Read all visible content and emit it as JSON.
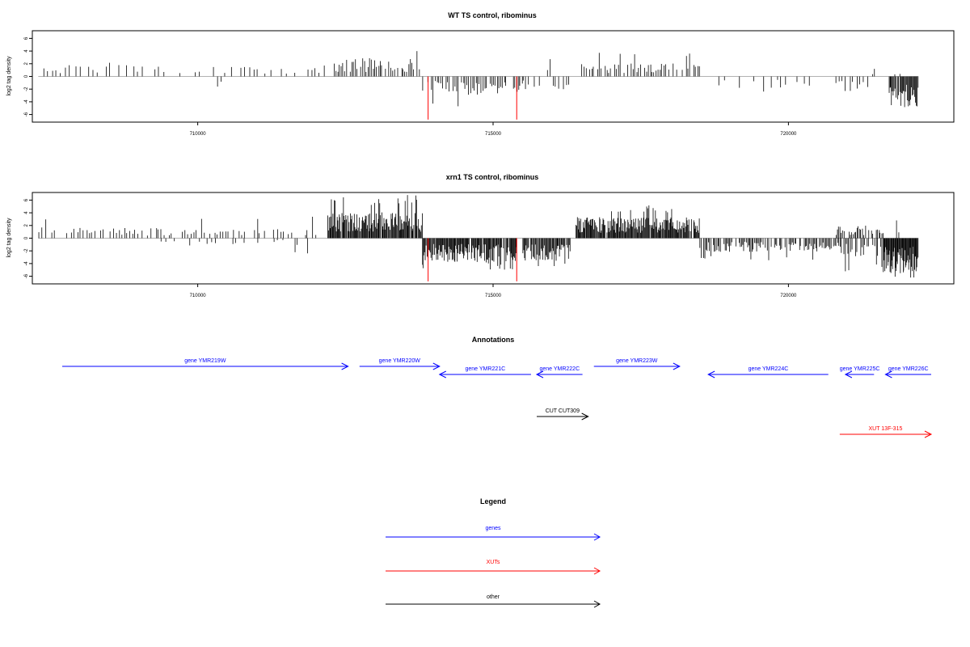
{
  "colors": {
    "genes": "#0000ff",
    "xuts": "#ff0000",
    "other": "#000000",
    "highlight": "#ff0000"
  },
  "chart_data": [
    {
      "type": "bar",
      "title": "WT TS control, ribominus",
      "ylabel": "log2 tag density",
      "xlim": [
        707200,
        722800
      ],
      "ylim": [
        -7.2,
        7.2
      ],
      "xticks": [
        710000,
        715000,
        720000
      ],
      "xtick_labels": [
        "710000",
        "715000",
        "720000"
      ],
      "yticks": [
        6,
        4,
        2,
        0,
        -2,
        -4,
        -6
      ],
      "ytick_labels": [
        "6",
        "4",
        "2",
        "0",
        "-2",
        "-4",
        "-6"
      ],
      "baseline_range": [
        707300,
        722200
      ],
      "highlight_lines": [
        {
          "x": 713900,
          "y": -6.8
        },
        {
          "x": 715400,
          "y": -6.8
        }
      ],
      "segments": [
        {
          "x0": 707300,
          "x1": 708900,
          "sign": 1,
          "avg": 1.3,
          "max": 2.8,
          "step": 70,
          "dens": 0.75
        },
        {
          "x0": 708900,
          "x1": 710500,
          "sign": 1,
          "avg": 1.1,
          "max": 2.6,
          "step": 70,
          "dens": 0.6
        },
        {
          "x0": 710300,
          "x1": 710400,
          "sign": -1,
          "avg": 1.5,
          "max": 1.6,
          "step": 60,
          "dens": 1.0
        },
        {
          "x0": 710500,
          "x1": 712200,
          "sign": 1,
          "avg": 1.1,
          "max": 2.2,
          "step": 70,
          "dens": 0.6
        },
        {
          "x0": 712300,
          "x1": 713800,
          "sign": 1,
          "avg": 2.0,
          "max": 5.0,
          "step": 30,
          "dens": 0.85
        },
        {
          "x0": 713800,
          "x1": 715500,
          "sign": -1,
          "avg": 2.0,
          "max": 5.6,
          "step": 30,
          "dens": 0.85
        },
        {
          "x0": 715500,
          "x1": 716300,
          "sign": -1,
          "avg": 1.4,
          "max": 2.6,
          "step": 45,
          "dens": 0.7
        },
        {
          "x0": 715900,
          "x1": 716000,
          "sign": 1,
          "avg": 2.5,
          "max": 2.8,
          "step": 50,
          "dens": 1.0
        },
        {
          "x0": 716500,
          "x1": 718500,
          "sign": 1,
          "avg": 1.4,
          "max": 3.8,
          "step": 32,
          "dens": 0.8
        },
        {
          "x0": 718500,
          "x1": 720400,
          "sign": -1,
          "avg": 1.3,
          "max": 2.6,
          "step": 80,
          "dens": 0.45
        },
        {
          "x0": 720800,
          "x1": 721400,
          "sign": -1,
          "avg": 1.6,
          "max": 2.8,
          "step": 45,
          "dens": 0.75
        },
        {
          "x0": 721400,
          "x1": 721500,
          "sign": 1,
          "avg": 1.0,
          "max": 1.2,
          "step": 50,
          "dens": 1.0
        },
        {
          "x0": 721700,
          "x1": 722200,
          "sign": -1,
          "avg": 3.5,
          "max": 5.0,
          "step": 14,
          "dens": 0.95
        },
        {
          "x0": 721800,
          "x1": 721900,
          "sign": 1,
          "avg": 0.9,
          "max": 1.2,
          "step": 60,
          "dens": 1.0
        }
      ]
    },
    {
      "type": "bar",
      "title": "xrn1 TS control, ribominus",
      "ylabel": "log2 tag density",
      "xlim": [
        707200,
        722800
      ],
      "ylim": [
        -7.2,
        7.2
      ],
      "xticks": [
        710000,
        715000,
        720000
      ],
      "xtick_labels": [
        "710000",
        "715000",
        "720000"
      ],
      "yticks": [
        6,
        4,
        2,
        0,
        -2,
        -4,
        -6
      ],
      "ytick_labels": [
        "6",
        "4",
        "2",
        "0",
        "-2",
        "-4",
        "-6"
      ],
      "baseline_range": [
        707300,
        722200
      ],
      "highlight_lines": [
        {
          "x": 713900,
          "y": -6.8
        },
        {
          "x": 715400,
          "y": -6.8
        }
      ],
      "segments": [
        {
          "x0": 707300,
          "x1": 708200,
          "sign": 1,
          "avg": 1.3,
          "max": 3.0,
          "step": 50,
          "dens": 0.75
        },
        {
          "x0": 708200,
          "x1": 712100,
          "sign": 1,
          "avg": 1.1,
          "max": 4.0,
          "step": 45,
          "dens": 0.6
        },
        {
          "x0": 709300,
          "x1": 712100,
          "sign": -1,
          "avg": 0.8,
          "max": 2.4,
          "step": 70,
          "dens": 0.35
        },
        {
          "x0": 712200,
          "x1": 713800,
          "sign": 1,
          "avg": 2.8,
          "max": 6.8,
          "step": 12,
          "dens": 0.95
        },
        {
          "x0": 713800,
          "x1": 715400,
          "sign": -1,
          "avg": 2.6,
          "max": 5.0,
          "step": 12,
          "dens": 0.95
        },
        {
          "x0": 715500,
          "x1": 716300,
          "sign": -1,
          "avg": 2.4,
          "max": 4.5,
          "step": 14,
          "dens": 0.9
        },
        {
          "x0": 716400,
          "x1": 718500,
          "sign": 1,
          "avg": 2.3,
          "max": 5.4,
          "step": 12,
          "dens": 0.95
        },
        {
          "x0": 718500,
          "x1": 720800,
          "sign": -1,
          "avg": 1.5,
          "max": 3.6,
          "step": 20,
          "dens": 0.8
        },
        {
          "x0": 720800,
          "x1": 721600,
          "sign": 1,
          "avg": 1.3,
          "max": 2.6,
          "step": 22,
          "dens": 0.8
        },
        {
          "x0": 720800,
          "x1": 721600,
          "sign": -1,
          "avg": 2.0,
          "max": 5.4,
          "step": 22,
          "dens": 0.8
        },
        {
          "x0": 721600,
          "x1": 722200,
          "sign": -1,
          "avg": 3.8,
          "max": 6.6,
          "step": 10,
          "dens": 0.98
        },
        {
          "x0": 721800,
          "x1": 721900,
          "sign": 1,
          "avg": 2.0,
          "max": 2.8,
          "step": 50,
          "dens": 1.0
        }
      ]
    }
  ],
  "annotations": {
    "title": "Annotations",
    "genes": [
      {
        "label": "gene YMR219W",
        "start": 707200,
        "end": 712200,
        "strand": "+"
      },
      {
        "label": "gene YMR220W",
        "start": 712400,
        "end": 713800,
        "strand": "+"
      },
      {
        "label": "gene YMR221C",
        "start": 713800,
        "end": 715400,
        "strand": "-"
      },
      {
        "label": "gene YMR222C",
        "start": 715500,
        "end": 716300,
        "strand": "-"
      },
      {
        "label": "gene YMR223W",
        "start": 716500,
        "end": 718000,
        "strand": "+"
      },
      {
        "label": "gene YMR224C",
        "start": 718500,
        "end": 720600,
        "strand": "-"
      },
      {
        "label": "gene YMR225C",
        "start": 720900,
        "end": 721400,
        "strand": "-"
      },
      {
        "label": "gene YMR226C",
        "start": 721600,
        "end": 722400,
        "strand": "-"
      }
    ],
    "other": [
      {
        "label": "CUT CUT309",
        "start": 715500,
        "end": 716400,
        "strand": "+"
      }
    ],
    "xuts": [
      {
        "label": "XUT 13F-315",
        "start": 720800,
        "end": 722400,
        "strand": "+"
      }
    ]
  },
  "legend": {
    "title": "Legend",
    "items": [
      {
        "label": "genes",
        "color": "#0000ff"
      },
      {
        "label": "XUTs",
        "color": "#ff0000"
      },
      {
        "label": "other",
        "color": "#000000"
      }
    ]
  }
}
